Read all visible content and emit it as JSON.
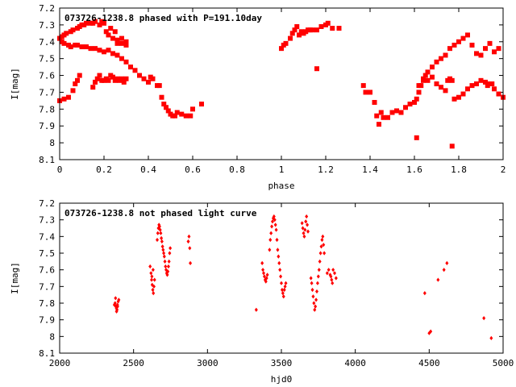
{
  "chart_data": [
    {
      "type": "scatter",
      "title": "073726-1238.8 phased with P=191.10day",
      "xlabel": "phase",
      "ylabel": "I[mag]",
      "xlim": [
        0,
        2
      ],
      "ylim": [
        8.1,
        7.2
      ],
      "y_inverted": true,
      "xticks": [
        {
          "v": 0,
          "label": "0"
        },
        {
          "v": 0.2,
          "label": "0.2"
        },
        {
          "v": 0.4,
          "label": "0.4"
        },
        {
          "v": 0.6,
          "label": "0.6"
        },
        {
          "v": 0.8,
          "label": "0.8"
        },
        {
          "v": 1,
          "label": "1"
        },
        {
          "v": 1.2,
          "label": "1.2"
        },
        {
          "v": 1.4,
          "label": "1.4"
        },
        {
          "v": 1.6,
          "label": "1.6"
        },
        {
          "v": 1.8,
          "label": "1.8"
        },
        {
          "v": 2,
          "label": "2"
        }
      ],
      "yticks": [
        {
          "v": 7.2,
          "label": "7.2"
        },
        {
          "v": 7.3,
          "label": "7.3"
        },
        {
          "v": 7.4,
          "label": "7.4"
        },
        {
          "v": 7.5,
          "label": "7.5"
        },
        {
          "v": 7.6,
          "label": "7.6"
        },
        {
          "v": 7.7,
          "label": "7.7"
        },
        {
          "v": 7.8,
          "label": "7.8"
        },
        {
          "v": 7.9,
          "label": "7.9"
        },
        {
          "v": 8,
          "label": "8"
        },
        {
          "v": 8.1,
          "label": "8.1"
        }
      ],
      "marker": "square",
      "color": "#ff0000",
      "series": [
        {
          "x": [
            0.0,
            0.01,
            0.02,
            0.03,
            0.05,
            0.06,
            0.08,
            0.09,
            0.1,
            0.11,
            0.12,
            0.14,
            0.15,
            0.16,
            0.18,
            0.19,
            0.2,
            0.21,
            0.22,
            0.24,
            0.26,
            0.28,
            0.3,
            0.0,
            0.01,
            0.02,
            0.04,
            0.05,
            0.07,
            0.08,
            0.1,
            0.12,
            0.14,
            0.16,
            0.18,
            0.2,
            0.22,
            0.24,
            0.26,
            0.28,
            0.3,
            0.32,
            0.34,
            0.36,
            0.38,
            0.4,
            0.0,
            0.02,
            0.04,
            0.06,
            0.07,
            0.08,
            0.09,
            0.15,
            0.16,
            0.17,
            0.18,
            0.19,
            0.2,
            0.21,
            0.22,
            0.23,
            0.24,
            0.25,
            0.26,
            0.27,
            0.28,
            0.29,
            0.3,
            0.41,
            0.42,
            0.44,
            0.45,
            0.46,
            0.47,
            0.48,
            0.49,
            0.5,
            0.51,
            0.52,
            0.53,
            0.55,
            0.57,
            0.59,
            0.6,
            0.64,
            0.23,
            0.25,
            0.26,
            0.28,
            0.3,
            1.0,
            1.01,
            1.02,
            1.04,
            1.05,
            1.06,
            1.07,
            1.08,
            1.09,
            1.1,
            1.11,
            1.12,
            1.13,
            1.14,
            1.16,
            1.18,
            1.2,
            1.21,
            1.23,
            1.26,
            1.16,
            1.37,
            1.38,
            1.4,
            1.42,
            1.43,
            1.44,
            1.45,
            1.46,
            1.48,
            1.5,
            1.52,
            1.54,
            1.56,
            1.58,
            1.6,
            1.61,
            1.62,
            1.63,
            1.64,
            1.65,
            1.66,
            1.68,
            1.7,
            1.72,
            1.74,
            1.76,
            1.78,
            1.8,
            1.82,
            1.84,
            1.86,
            1.88,
            1.9,
            1.92,
            1.94,
            1.96,
            1.98,
            1.62,
            1.64,
            1.66,
            1.68,
            1.7,
            1.72,
            1.74,
            1.75,
            1.76,
            1.77,
            1.78,
            1.8,
            1.82,
            1.84,
            1.86,
            1.88,
            1.9,
            1.92,
            1.94,
            1.96,
            1.98,
            2.0,
            1.61,
            1.77,
            1.93,
            1.95
          ],
          "y": [
            7.38,
            7.37,
            7.36,
            7.35,
            7.34,
            7.33,
            7.32,
            7.31,
            7.3,
            7.3,
            7.29,
            7.29,
            7.29,
            7.28,
            7.3,
            7.28,
            7.29,
            7.34,
            7.36,
            7.38,
            7.39,
            7.41,
            7.4,
            7.38,
            7.4,
            7.41,
            7.42,
            7.43,
            7.42,
            7.42,
            7.43,
            7.43,
            7.44,
            7.44,
            7.45,
            7.46,
            7.45,
            7.47,
            7.48,
            7.5,
            7.52,
            7.55,
            7.57,
            7.6,
            7.62,
            7.64,
            7.75,
            7.74,
            7.73,
            7.69,
            7.65,
            7.63,
            7.6,
            7.67,
            7.64,
            7.62,
            7.6,
            7.63,
            7.63,
            7.62,
            7.63,
            7.6,
            7.61,
            7.63,
            7.62,
            7.63,
            7.62,
            7.64,
            7.62,
            7.61,
            7.62,
            7.66,
            7.66,
            7.73,
            7.77,
            7.79,
            7.81,
            7.83,
            7.84,
            7.84,
            7.82,
            7.83,
            7.84,
            7.84,
            7.8,
            7.77,
            7.32,
            7.34,
            7.41,
            7.38,
            7.42,
            7.44,
            7.42,
            7.41,
            7.38,
            7.35,
            7.33,
            7.31,
            7.36,
            7.34,
            7.35,
            7.34,
            7.33,
            7.33,
            7.33,
            7.33,
            7.31,
            7.3,
            7.29,
            7.32,
            7.32,
            7.56,
            7.66,
            7.7,
            7.7,
            7.76,
            7.84,
            7.89,
            7.82,
            7.85,
            7.85,
            7.82,
            7.81,
            7.82,
            7.79,
            7.77,
            7.76,
            7.74,
            7.7,
            7.66,
            7.62,
            7.6,
            7.58,
            7.55,
            7.52,
            7.5,
            7.48,
            7.44,
            7.42,
            7.4,
            7.38,
            7.36,
            7.42,
            7.47,
            7.48,
            7.44,
            7.41,
            7.46,
            7.44,
            7.66,
            7.63,
            7.63,
            7.61,
            7.65,
            7.67,
            7.69,
            7.63,
            7.62,
            7.63,
            7.74,
            7.73,
            7.71,
            7.68,
            7.66,
            7.65,
            7.63,
            7.64,
            7.65,
            7.68,
            7.71,
            7.73,
            7.97,
            8.02,
            7.66,
            7.65
          ]
        }
      ]
    },
    {
      "type": "scatter",
      "title": "073726-1238.8 not phased light curve",
      "xlabel": "hjd0",
      "ylabel": "I[mag]",
      "xlim": [
        2000,
        5000
      ],
      "ylim": [
        8.1,
        7.2
      ],
      "y_inverted": true,
      "xticks": [
        {
          "v": 2000,
          "label": "2000"
        },
        {
          "v": 2500,
          "label": "2500"
        },
        {
          "v": 3000,
          "label": "3000"
        },
        {
          "v": 3500,
          "label": "3500"
        },
        {
          "v": 4000,
          "label": "4000"
        },
        {
          "v": 4500,
          "label": "4500"
        },
        {
          "v": 5000,
          "label": "5000"
        }
      ],
      "yticks": [
        {
          "v": 7.2,
          "label": "7.2"
        },
        {
          "v": 7.3,
          "label": "7.3"
        },
        {
          "v": 7.4,
          "label": "7.4"
        },
        {
          "v": 7.5,
          "label": "7.5"
        },
        {
          "v": 7.6,
          "label": "7.6"
        },
        {
          "v": 7.7,
          "label": "7.7"
        },
        {
          "v": 7.8,
          "label": "7.8"
        },
        {
          "v": 7.9,
          "label": "7.9"
        },
        {
          "v": 8,
          "label": "8"
        },
        {
          "v": 8.1,
          "label": "8.1"
        }
      ],
      "marker": "diamond",
      "color": "#ff0000",
      "series": [
        {
          "x": [
            2370,
            2375,
            2380,
            2384,
            2388,
            2392,
            2396,
            2400,
            2385,
            2378,
            2391,
            2612,
            2618,
            2622,
            2626,
            2630,
            2634,
            2638,
            2642,
            2632,
            2624,
            2660,
            2664,
            2668,
            2672,
            2676,
            2680,
            2684,
            2688,
            2692,
            2696,
            2700,
            2704,
            2708,
            2712,
            2716,
            2720,
            2724,
            2728,
            2732,
            2736,
            2740,
            2744,
            2748,
            2870,
            2875,
            2880,
            2884,
            3330,
            3370,
            3375,
            3380,
            3385,
            3390,
            3395,
            3400,
            3405,
            3420,
            3425,
            3430,
            3435,
            3440,
            3445,
            3450,
            3455,
            3460,
            3465,
            3470,
            3475,
            3480,
            3485,
            3490,
            3495,
            3500,
            3505,
            3510,
            3515,
            3520,
            3525,
            3530,
            3640,
            3645,
            3650,
            3655,
            3660,
            3665,
            3670,
            3675,
            3680,
            3700,
            3705,
            3710,
            3715,
            3720,
            3725,
            3730,
            3735,
            3740,
            3745,
            3750,
            3755,
            3760,
            3765,
            3770,
            3775,
            3780,
            3785,
            3790,
            3810,
            3820,
            3830,
            3840,
            3850,
            3860,
            3870,
            3845,
            3835,
            4470,
            4500,
            4510,
            4560,
            4600,
            4620,
            4870,
            4920
          ],
          "y": [
            7.81,
            7.8,
            7.82,
            7.83,
            7.84,
            7.82,
            7.79,
            7.78,
            7.85,
            7.77,
            7.81,
            7.58,
            7.62,
            7.66,
            7.69,
            7.72,
            7.74,
            7.7,
            7.66,
            7.6,
            7.64,
            7.42,
            7.38,
            7.35,
            7.33,
            7.34,
            7.36,
            7.38,
            7.41,
            7.43,
            7.46,
            7.48,
            7.5,
            7.52,
            7.55,
            7.58,
            7.6,
            7.62,
            7.63,
            7.61,
            7.58,
            7.55,
            7.5,
            7.47,
            7.43,
            7.4,
            7.47,
            7.56,
            7.84,
            7.56,
            7.6,
            7.62,
            7.64,
            7.66,
            7.67,
            7.65,
            7.63,
            7.48,
            7.42,
            7.38,
            7.34,
            7.31,
            7.29,
            7.28,
            7.3,
            7.33,
            7.36,
            7.42,
            7.48,
            7.52,
            7.56,
            7.6,
            7.64,
            7.68,
            7.72,
            7.74,
            7.76,
            7.72,
            7.7,
            7.68,
            7.32,
            7.35,
            7.38,
            7.4,
            7.36,
            7.31,
            7.28,
            7.33,
            7.37,
            7.65,
            7.68,
            7.72,
            7.76,
            7.8,
            7.84,
            7.82,
            7.78,
            7.73,
            7.68,
            7.64,
            7.6,
            7.55,
            7.5,
            7.46,
            7.42,
            7.4,
            7.45,
            7.5,
            7.62,
            7.6,
            7.63,
            7.66,
            7.6,
            7.62,
            7.65,
            7.68,
            7.64,
            7.74,
            7.98,
            7.97,
            7.66,
            7.6,
            7.56,
            7.89,
            8.01
          ]
        }
      ]
    }
  ]
}
